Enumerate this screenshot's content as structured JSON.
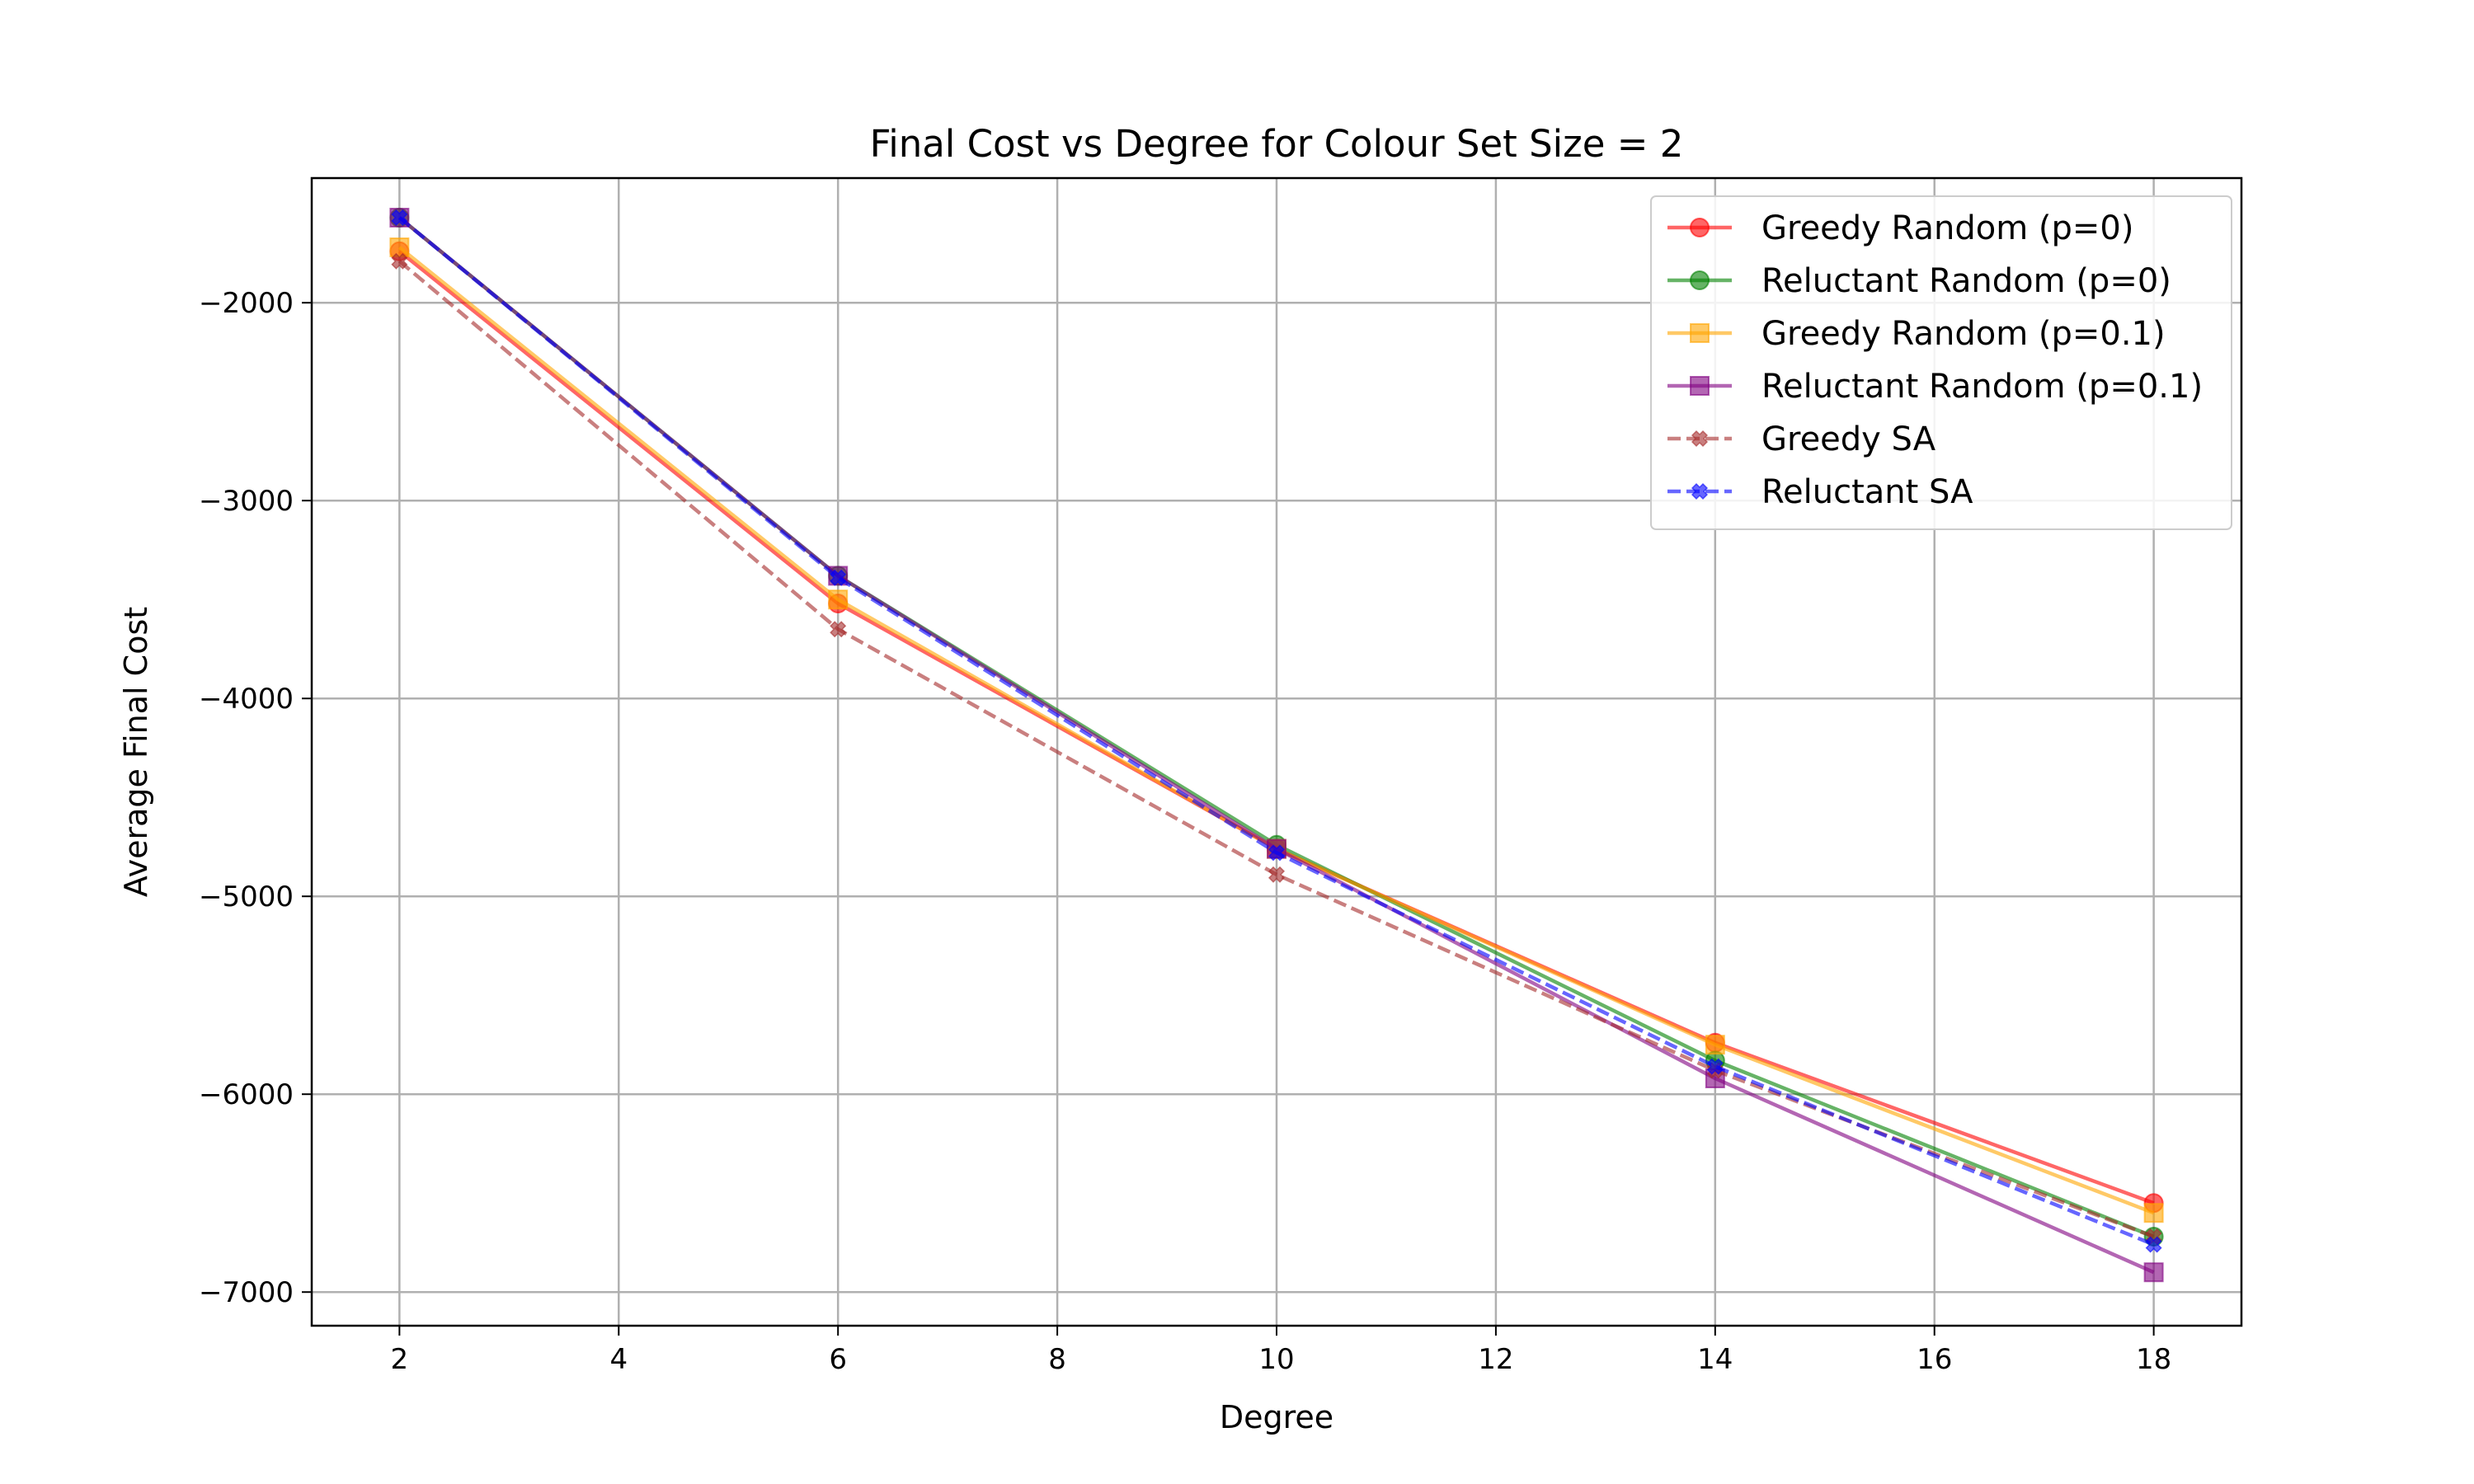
{
  "chart_data": {
    "type": "line",
    "title": "Final Cost vs Degree for Colour Set Size = 2",
    "xlabel": "Degree",
    "ylabel": "Average Final Cost",
    "x": [
      2,
      6,
      10,
      14,
      18
    ],
    "xlim": [
      1.2,
      18.8
    ],
    "ylim": [
      -7170,
      -1370
    ],
    "xticks": [
      2,
      4,
      6,
      8,
      10,
      12,
      14,
      16,
      18
    ],
    "yticks": [
      -7000,
      -6000,
      -5000,
      -4000,
      -3000,
      -2000
    ],
    "grid": true,
    "legend_position": "top-right",
    "series": [
      {
        "name": "Greedy Random (p=0)",
        "values": [
          -1740,
          -3520,
          -4760,
          -5740,
          -6550
        ],
        "color": "#ff0000",
        "marker": "circle",
        "dashed": false
      },
      {
        "name": "Reluctant Random (p=0)",
        "values": [
          -1570,
          -3380,
          -4740,
          -5830,
          -6720
        ],
        "color": "#008000",
        "marker": "circle",
        "dashed": false
      },
      {
        "name": "Greedy Random (p=0.1)",
        "values": [
          -1720,
          -3500,
          -4760,
          -5750,
          -6600
        ],
        "color": "#ffa500",
        "marker": "square",
        "dashed": false
      },
      {
        "name": "Reluctant Random (p=0.1)",
        "values": [
          -1570,
          -3380,
          -4760,
          -5920,
          -6900
        ],
        "color": "#800080",
        "marker": "square",
        "dashed": false
      },
      {
        "name": "Greedy SA",
        "values": [
          -1790,
          -3650,
          -4890,
          -5880,
          -6720
        ],
        "color": "#a52a2a",
        "marker": "x",
        "dashed": true
      },
      {
        "name": "Reluctant SA",
        "values": [
          -1570,
          -3390,
          -4780,
          -5860,
          -6760
        ],
        "color": "#0000ff",
        "marker": "x",
        "dashed": true
      }
    ]
  }
}
